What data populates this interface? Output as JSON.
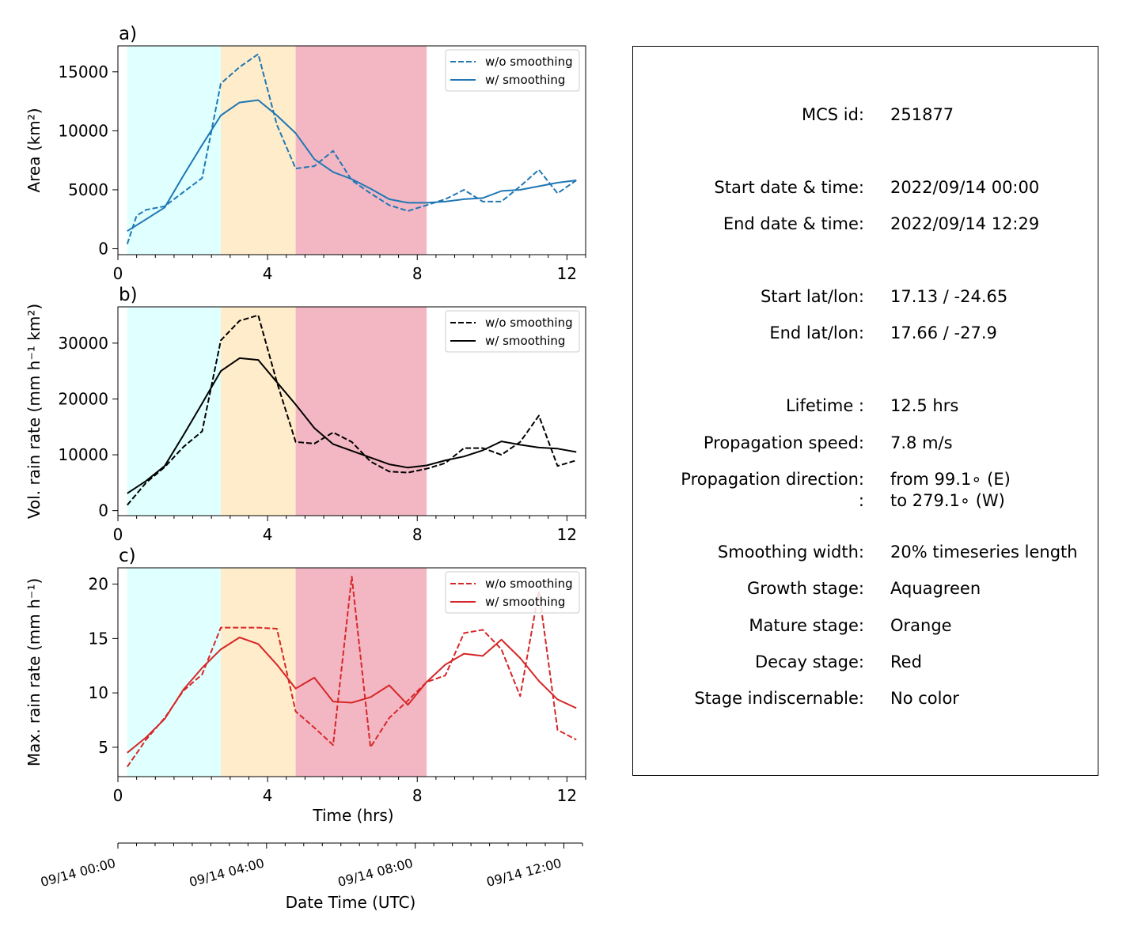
{
  "stage_colors": {
    "growth": "#e0ffff",
    "mature": "#ffecca",
    "decay": "#f3b7c4"
  },
  "stage_spans": [
    {
      "stage": "growth",
      "from": 0.25,
      "to": 2.75
    },
    {
      "stage": "mature",
      "from": 2.75,
      "to": 4.75
    },
    {
      "stage": "decay",
      "from": 4.75,
      "to": 8.25
    }
  ],
  "chart_data": [
    {
      "type": "line",
      "panel_label": "a)",
      "ylabel": "Area  (km²)",
      "xlim": [
        0,
        12.5
      ],
      "ylim": [
        -500,
        17200
      ],
      "yticks": [
        0,
        5000,
        10000,
        15000
      ],
      "ytick_labels": [
        "0",
        "5000",
        "10000",
        "15000"
      ],
      "xticks": [
        0,
        4,
        8,
        12
      ],
      "xtick_labels": [
        "0",
        "4",
        "8",
        "12"
      ],
      "color": "#1f77b4",
      "series": [
        {
          "name": "w/o smoothing",
          "style": "dashed",
          "x": [
            0.25,
            0.5,
            0.75,
            1.25,
            1.75,
            2.25,
            2.75,
            3.25,
            3.75,
            4.25,
            4.75,
            5.25,
            5.75,
            6.25,
            6.75,
            7.25,
            7.75,
            8.25,
            8.75,
            9.25,
            9.75,
            10.25,
            10.75,
            11.25,
            11.75,
            12.25
          ],
          "y": [
            400,
            2800,
            3300,
            3600,
            4800,
            6000,
            14000,
            15400,
            16500,
            10500,
            6800,
            7000,
            8300,
            5800,
            4700,
            3700,
            3200,
            3700,
            4200,
            5000,
            4000,
            4000,
            5300,
            6700,
            4700,
            5800
          ]
        },
        {
          "name": "w/ smoothing",
          "style": "solid",
          "x": [
            0.25,
            0.75,
            1.25,
            1.75,
            2.25,
            2.75,
            3.25,
            3.75,
            4.25,
            4.75,
            5.25,
            5.75,
            6.25,
            6.75,
            7.25,
            7.75,
            8.25,
            8.75,
            9.25,
            9.75,
            10.25,
            10.75,
            11.25,
            11.75,
            12.25
          ],
          "y": [
            1500,
            2500,
            3500,
            6200,
            8800,
            11300,
            12400,
            12600,
            11300,
            9800,
            7600,
            6500,
            5900,
            5100,
            4200,
            3900,
            3900,
            4000,
            4200,
            4300,
            4900,
            5000,
            5300,
            5600,
            5800
          ]
        }
      ]
    },
    {
      "type": "line",
      "panel_label": "b)",
      "ylabel": "Vol. rain rate (mm h⁻¹ km²)",
      "xlim": [
        0,
        12.5
      ],
      "ylim": [
        -900,
        36500
      ],
      "yticks": [
        0,
        10000,
        20000,
        30000
      ],
      "ytick_labels": [
        "0",
        "10000",
        "20000",
        "30000"
      ],
      "xticks": [
        0,
        4,
        8,
        12
      ],
      "xtick_labels": [
        "0",
        "4",
        "8",
        "12"
      ],
      "color": "#000000",
      "series": [
        {
          "name": "w/o smoothing",
          "style": "dashed",
          "x": [
            0.25,
            0.75,
            1.25,
            1.75,
            2.25,
            2.75,
            3.25,
            3.75,
            4.25,
            4.75,
            5.25,
            5.75,
            6.25,
            6.75,
            7.25,
            7.75,
            8.25,
            8.75,
            9.25,
            9.75,
            10.25,
            10.75,
            11.25,
            11.75,
            12.25
          ],
          "y": [
            1000,
            5000,
            7800,
            11400,
            14200,
            30500,
            34000,
            35000,
            23000,
            12300,
            12000,
            14000,
            12300,
            8800,
            7000,
            6800,
            7500,
            8500,
            11200,
            11200,
            10000,
            12300,
            17000,
            8000,
            9000
          ]
        },
        {
          "name": "w/ smoothing",
          "style": "solid",
          "x": [
            0.25,
            0.75,
            1.25,
            1.75,
            2.25,
            2.75,
            3.25,
            3.75,
            4.25,
            4.75,
            5.25,
            5.75,
            6.25,
            6.75,
            7.25,
            7.75,
            8.25,
            8.75,
            9.25,
            9.75,
            10.25,
            10.75,
            11.25,
            11.75,
            12.25
          ],
          "y": [
            3100,
            5300,
            8000,
            13500,
            19200,
            25000,
            27300,
            27000,
            23000,
            19000,
            14800,
            11900,
            10700,
            9500,
            8300,
            7700,
            8100,
            9000,
            9700,
            10800,
            12400,
            11800,
            11300,
            11100,
            10500
          ]
        }
      ]
    },
    {
      "type": "line",
      "panel_label": "c)",
      "ylabel": "Max. rain rate  (mm h⁻¹)",
      "xlabel": "Time (hrs)",
      "xlim": [
        0,
        12.5
      ],
      "ylim": [
        2.3,
        21.5
      ],
      "yticks": [
        5,
        10,
        15,
        20
      ],
      "ytick_labels": [
        "5",
        "10",
        "15",
        "20"
      ],
      "xticks": [
        0,
        4,
        8,
        12
      ],
      "xtick_labels": [
        "0",
        "4",
        "8",
        "12"
      ],
      "color": "#d62728",
      "series": [
        {
          "name": "w/o smoothing",
          "style": "dashed",
          "x": [
            0.25,
            0.75,
            1.25,
            1.75,
            2.25,
            2.75,
            3.25,
            3.75,
            4.25,
            4.75,
            5.25,
            5.75,
            6.25,
            6.75,
            7.25,
            7.75,
            8.25,
            8.75,
            9.25,
            9.75,
            10.25,
            10.75,
            11.25,
            11.75,
            12.25
          ],
          "y": [
            3.2,
            5.7,
            7.7,
            10.2,
            11.7,
            16.0,
            16.0,
            16.0,
            15.9,
            8.3,
            6.8,
            5.2,
            20.7,
            5.0,
            7.7,
            9.3,
            11.0,
            11.6,
            15.5,
            15.8,
            14.0,
            9.7,
            19.4,
            6.6,
            5.7
          ]
        },
        {
          "name": "w/ smoothing",
          "style": "solid",
          "x": [
            0.25,
            0.75,
            1.25,
            1.75,
            2.25,
            2.75,
            3.25,
            3.75,
            4.25,
            4.75,
            5.25,
            5.75,
            6.25,
            6.75,
            7.25,
            7.75,
            8.25,
            8.75,
            9.25,
            9.75,
            10.25,
            10.75,
            11.25,
            11.75,
            12.25
          ],
          "y": [
            4.5,
            5.9,
            7.6,
            10.3,
            12.3,
            14.0,
            15.1,
            14.5,
            12.6,
            10.4,
            11.4,
            9.2,
            9.1,
            9.6,
            10.7,
            8.9,
            11.0,
            12.6,
            13.6,
            13.4,
            14.9,
            13.2,
            11.1,
            9.4,
            8.6
          ]
        }
      ]
    }
  ],
  "datetime_axis": {
    "xlabel": "Date Time (UTC)",
    "xlim": [
      0,
      12.5
    ],
    "major_ticks": [
      0,
      4,
      8,
      12
    ],
    "major_labels": [
      "09/14 00:00",
      "09/14 04:00",
      "09/14 08:00",
      "09/14 12:00"
    ]
  },
  "info_panel": {
    "rows": [
      {
        "label": "MCS id:",
        "value": "251877"
      },
      {
        "label": "Start date & time:",
        "value": "2022/09/14 00:00"
      },
      {
        "label": "End date & time:",
        "value": "2022/09/14 12:29"
      },
      {
        "label": "Start lat/lon:",
        "value": "17.13 / -24.65"
      },
      {
        "label": "End lat/lon:",
        "value": "17.66 / -27.9"
      },
      {
        "label": "Lifetime :",
        "value": "12.5 hrs"
      },
      {
        "label": "Propagation speed:",
        "value": "7.8 m/s"
      },
      {
        "label": "Propagation direction:",
        "value": "from  99.1∘ (E)"
      },
      {
        "label": ":",
        "value": "to   279.1∘ (W)"
      },
      {
        "label": "Smoothing width:",
        "value": "20% timeseries length"
      },
      {
        "label": "Growth stage:",
        "value": "Aquagreen"
      },
      {
        "label": "Mature stage:",
        "value": "Orange"
      },
      {
        "label": "Decay stage:",
        "value": "Red"
      },
      {
        "label": "Stage indiscernable:",
        "value": "No color"
      }
    ]
  }
}
